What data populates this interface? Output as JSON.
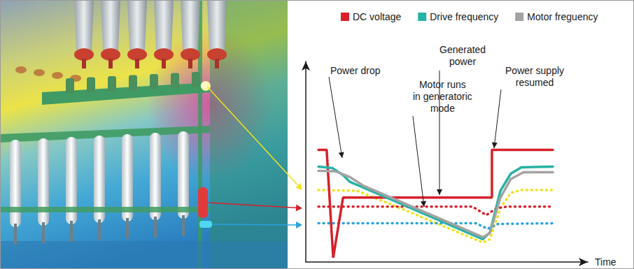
{
  "chart_data": {
    "type": "line",
    "x_label": "Time",
    "xlim": [
      0,
      100
    ],
    "ylim": [
      0,
      100
    ],
    "tick_labels": false,
    "grid": false,
    "legend": "top",
    "annotations": [
      "Power drop",
      "Generated\npower",
      "Motor runs\nin generatoric\nmode",
      "Power supply\nresumed"
    ],
    "series": [
      {
        "name": "DC voltage",
        "color": "#d7202a",
        "line_style": "solid",
        "x": [
          4.5,
          7.4,
          9.7,
          13.2,
          66.0,
          66.0,
          87.6
        ],
        "values": [
          55.9,
          55.9,
          2.1,
          32.1,
          32.1,
          55.9,
          55.9
        ]
      },
      {
        "name": "Drive frequency",
        "color": "#25b3a4",
        "line_style": "solid",
        "x": [
          4.5,
          9.4,
          13.2,
          15.6,
          23.1,
          62.8,
          65.3,
          69.0,
          72.7,
          76.4,
          87.6
        ],
        "values": [
          47.6,
          46.9,
          43.4,
          40.0,
          35.5,
          11.4,
          14.8,
          35.5,
          44.1,
          47.2,
          47.6
        ]
      },
      {
        "name": "Motor freguency",
        "color": "#a3a3a3",
        "line_style": "solid",
        "x": [
          4.5,
          10.7,
          15.6,
          20.6,
          62.8,
          65.3,
          69.0,
          72.7,
          77.2,
          87.6
        ],
        "values": [
          45.5,
          45.2,
          42.4,
          37.9,
          12.4,
          14.5,
          32.1,
          41.4,
          44.8,
          44.8
        ]
      },
      {
        "color": "#f2e21c",
        "line_style": "dotted",
        "x": [
          4.5,
          18.1,
          30.5,
          62.8,
          65.3,
          69.0,
          72.7,
          76.4,
          87.6
        ],
        "values": [
          35.9,
          35.5,
          28.6,
          9.7,
          11.4,
          26.9,
          34.5,
          35.9,
          35.9
        ]
      },
      {
        "color": "#d7202a",
        "line_style": "dotted",
        "x": [
          4.5,
          59.1,
          64.0,
          67.7,
          71.5,
          87.6
        ],
        "values": [
          27.6,
          27.6,
          23.4,
          26.9,
          27.6,
          27.6
        ]
      },
      {
        "color": "#2aa3dd",
        "line_style": "dotted",
        "x": [
          4.5,
          60.3,
          64.5,
          68.2,
          87.6
        ],
        "values": [
          19.3,
          19.3,
          16.6,
          19.0,
          19.3
        ]
      }
    ]
  }
}
